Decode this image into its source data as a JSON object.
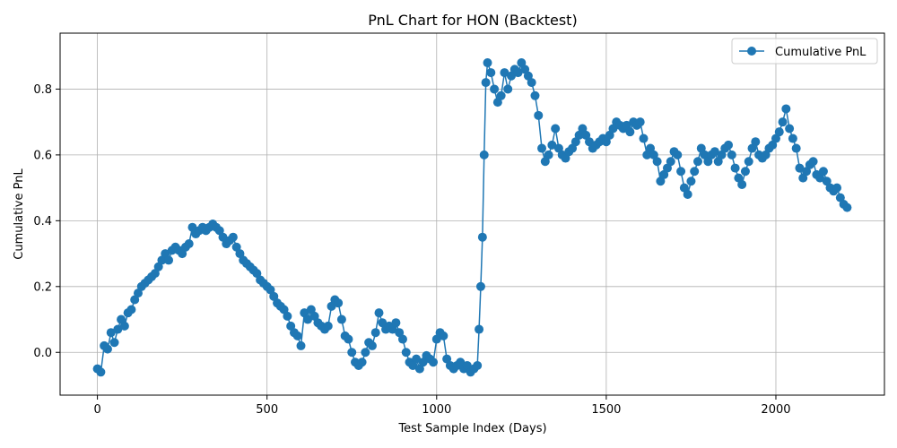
{
  "chart_data": {
    "type": "line",
    "title": "PnL Chart for HON (Backtest)",
    "xlabel": "Test Sample Index (Days)",
    "ylabel": "Cumulative PnL",
    "xlim": [
      -110,
      2320
    ],
    "ylim": [
      -0.13,
      0.97
    ],
    "xticks": [
      0,
      500,
      1000,
      1500,
      2000
    ],
    "yticks": [
      0.0,
      0.2,
      0.4,
      0.6,
      0.8
    ],
    "xtick_labels": [
      "0",
      "500",
      "1000",
      "1500",
      "2000"
    ],
    "ytick_labels": [
      "0.0",
      "0.2",
      "0.4",
      "0.6",
      "0.8"
    ],
    "grid": true,
    "legend_position": "top-right",
    "series": [
      {
        "name": "Cumulative PnL",
        "color": "#1f77b4",
        "marker": "circle",
        "points": [
          [
            0,
            -0.05
          ],
          [
            10,
            -0.06
          ],
          [
            20,
            0.02
          ],
          [
            30,
            0.01
          ],
          [
            40,
            0.06
          ],
          [
            50,
            0.03
          ],
          [
            60,
            0.07
          ],
          [
            70,
            0.1
          ],
          [
            80,
            0.08
          ],
          [
            90,
            0.12
          ],
          [
            100,
            0.13
          ],
          [
            110,
            0.16
          ],
          [
            120,
            0.18
          ],
          [
            130,
            0.2
          ],
          [
            140,
            0.21
          ],
          [
            150,
            0.22
          ],
          [
            160,
            0.23
          ],
          [
            170,
            0.24
          ],
          [
            180,
            0.26
          ],
          [
            190,
            0.28
          ],
          [
            200,
            0.3
          ],
          [
            210,
            0.28
          ],
          [
            220,
            0.31
          ],
          [
            230,
            0.32
          ],
          [
            240,
            0.31
          ],
          [
            250,
            0.3
          ],
          [
            260,
            0.32
          ],
          [
            270,
            0.33
          ],
          [
            280,
            0.38
          ],
          [
            290,
            0.36
          ],
          [
            300,
            0.37
          ],
          [
            310,
            0.38
          ],
          [
            320,
            0.37
          ],
          [
            330,
            0.38
          ],
          [
            340,
            0.39
          ],
          [
            350,
            0.38
          ],
          [
            360,
            0.37
          ],
          [
            370,
            0.35
          ],
          [
            380,
            0.33
          ],
          [
            390,
            0.34
          ],
          [
            400,
            0.35
          ],
          [
            410,
            0.32
          ],
          [
            420,
            0.3
          ],
          [
            430,
            0.28
          ],
          [
            440,
            0.27
          ],
          [
            450,
            0.26
          ],
          [
            460,
            0.25
          ],
          [
            470,
            0.24
          ],
          [
            480,
            0.22
          ],
          [
            490,
            0.21
          ],
          [
            500,
            0.2
          ],
          [
            510,
            0.19
          ],
          [
            520,
            0.17
          ],
          [
            530,
            0.15
          ],
          [
            540,
            0.14
          ],
          [
            550,
            0.13
          ],
          [
            560,
            0.11
          ],
          [
            570,
            0.08
          ],
          [
            580,
            0.06
          ],
          [
            590,
            0.05
          ],
          [
            600,
            0.02
          ],
          [
            610,
            0.12
          ],
          [
            620,
            0.1
          ],
          [
            630,
            0.13
          ],
          [
            640,
            0.11
          ],
          [
            650,
            0.09
          ],
          [
            660,
            0.08
          ],
          [
            670,
            0.07
          ],
          [
            680,
            0.08
          ],
          [
            690,
            0.14
          ],
          [
            700,
            0.16
          ],
          [
            710,
            0.15
          ],
          [
            720,
            0.1
          ],
          [
            730,
            0.05
          ],
          [
            740,
            0.04
          ],
          [
            750,
            0.0
          ],
          [
            760,
            -0.03
          ],
          [
            770,
            -0.04
          ],
          [
            780,
            -0.03
          ],
          [
            790,
            0.0
          ],
          [
            800,
            0.03
          ],
          [
            810,
            0.02
          ],
          [
            820,
            0.06
          ],
          [
            830,
            0.12
          ],
          [
            840,
            0.09
          ],
          [
            850,
            0.07
          ],
          [
            860,
            0.08
          ],
          [
            870,
            0.07
          ],
          [
            880,
            0.09
          ],
          [
            890,
            0.06
          ],
          [
            900,
            0.04
          ],
          [
            910,
            0.0
          ],
          [
            920,
            -0.03
          ],
          [
            930,
            -0.04
          ],
          [
            940,
            -0.02
          ],
          [
            950,
            -0.05
          ],
          [
            960,
            -0.03
          ],
          [
            970,
            -0.01
          ],
          [
            980,
            -0.02
          ],
          [
            990,
            -0.03
          ],
          [
            1000,
            0.04
          ],
          [
            1010,
            0.06
          ],
          [
            1020,
            0.05
          ],
          [
            1030,
            -0.02
          ],
          [
            1040,
            -0.04
          ],
          [
            1050,
            -0.05
          ],
          [
            1060,
            -0.04
          ],
          [
            1070,
            -0.03
          ],
          [
            1080,
            -0.05
          ],
          [
            1090,
            -0.04
          ],
          [
            1100,
            -0.06
          ],
          [
            1110,
            -0.05
          ],
          [
            1120,
            -0.04
          ],
          [
            1125,
            0.07
          ],
          [
            1130,
            0.2
          ],
          [
            1135,
            0.35
          ],
          [
            1140,
            0.6
          ],
          [
            1145,
            0.82
          ],
          [
            1150,
            0.88
          ],
          [
            1160,
            0.85
          ],
          [
            1170,
            0.8
          ],
          [
            1180,
            0.76
          ],
          [
            1190,
            0.78
          ],
          [
            1200,
            0.85
          ],
          [
            1210,
            0.8
          ],
          [
            1220,
            0.84
          ],
          [
            1230,
            0.86
          ],
          [
            1240,
            0.85
          ],
          [
            1250,
            0.88
          ],
          [
            1260,
            0.86
          ],
          [
            1270,
            0.84
          ],
          [
            1280,
            0.82
          ],
          [
            1290,
            0.78
          ],
          [
            1300,
            0.72
          ],
          [
            1310,
            0.62
          ],
          [
            1320,
            0.58
          ],
          [
            1330,
            0.6
          ],
          [
            1340,
            0.63
          ],
          [
            1350,
            0.68
          ],
          [
            1360,
            0.62
          ],
          [
            1370,
            0.6
          ],
          [
            1380,
            0.59
          ],
          [
            1390,
            0.61
          ],
          [
            1400,
            0.62
          ],
          [
            1410,
            0.64
          ],
          [
            1420,
            0.66
          ],
          [
            1430,
            0.68
          ],
          [
            1440,
            0.66
          ],
          [
            1450,
            0.64
          ],
          [
            1460,
            0.62
          ],
          [
            1470,
            0.63
          ],
          [
            1480,
            0.64
          ],
          [
            1490,
            0.65
          ],
          [
            1500,
            0.64
          ],
          [
            1510,
            0.66
          ],
          [
            1520,
            0.68
          ],
          [
            1530,
            0.7
          ],
          [
            1540,
            0.69
          ],
          [
            1550,
            0.68
          ],
          [
            1560,
            0.69
          ],
          [
            1570,
            0.67
          ],
          [
            1580,
            0.7
          ],
          [
            1590,
            0.69
          ],
          [
            1600,
            0.7
          ],
          [
            1610,
            0.65
          ],
          [
            1620,
            0.6
          ],
          [
            1630,
            0.62
          ],
          [
            1640,
            0.6
          ],
          [
            1650,
            0.58
          ],
          [
            1660,
            0.52
          ],
          [
            1670,
            0.54
          ],
          [
            1680,
            0.56
          ],
          [
            1690,
            0.58
          ],
          [
            1700,
            0.61
          ],
          [
            1710,
            0.6
          ],
          [
            1720,
            0.55
          ],
          [
            1730,
            0.5
          ],
          [
            1740,
            0.48
          ],
          [
            1750,
            0.52
          ],
          [
            1760,
            0.55
          ],
          [
            1770,
            0.58
          ],
          [
            1780,
            0.62
          ],
          [
            1790,
            0.6
          ],
          [
            1800,
            0.58
          ],
          [
            1810,
            0.6
          ],
          [
            1820,
            0.61
          ],
          [
            1830,
            0.58
          ],
          [
            1840,
            0.6
          ],
          [
            1850,
            0.62
          ],
          [
            1860,
            0.63
          ],
          [
            1870,
            0.6
          ],
          [
            1880,
            0.56
          ],
          [
            1890,
            0.53
          ],
          [
            1900,
            0.51
          ],
          [
            1910,
            0.55
          ],
          [
            1920,
            0.58
          ],
          [
            1930,
            0.62
          ],
          [
            1940,
            0.64
          ],
          [
            1950,
            0.6
          ],
          [
            1960,
            0.59
          ],
          [
            1970,
            0.6
          ],
          [
            1980,
            0.62
          ],
          [
            1990,
            0.63
          ],
          [
            2000,
            0.65
          ],
          [
            2010,
            0.67
          ],
          [
            2020,
            0.7
          ],
          [
            2030,
            0.74
          ],
          [
            2040,
            0.68
          ],
          [
            2050,
            0.65
          ],
          [
            2060,
            0.62
          ],
          [
            2070,
            0.56
          ],
          [
            2080,
            0.53
          ],
          [
            2090,
            0.55
          ],
          [
            2100,
            0.57
          ],
          [
            2110,
            0.58
          ],
          [
            2120,
            0.54
          ],
          [
            2130,
            0.53
          ],
          [
            2140,
            0.55
          ],
          [
            2150,
            0.52
          ],
          [
            2160,
            0.5
          ],
          [
            2170,
            0.49
          ],
          [
            2180,
            0.5
          ],
          [
            2190,
            0.47
          ],
          [
            2200,
            0.45
          ],
          [
            2210,
            0.44
          ]
        ]
      }
    ]
  }
}
